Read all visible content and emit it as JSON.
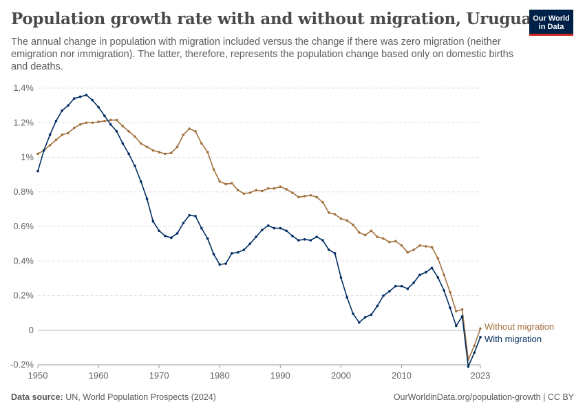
{
  "header": {
    "title": "Population growth rate with and without migration, Uruguay",
    "subtitle": "The annual change in population with migration included versus the change if there was zero migration (neither emigration nor immigration). The latter, therefore, represents the population change based only on domestic births and deaths.",
    "logo_text": "Our World in Data"
  },
  "footer": {
    "source_label": "Data source:",
    "source_text": "UN, World Population Prospects (2024)",
    "link_text": "OurWorldinData.org/population-growth | CC BY"
  },
  "colors": {
    "with_migration": "#002d62",
    "without_migration": "#a2703c",
    "gridline": "#dddddd",
    "zero_line": "#aaaaaa",
    "tick_text": "#666666",
    "logo_bg": "#002147",
    "logo_accent": "#ce261e"
  },
  "chart_data": {
    "type": "line",
    "title": "Population growth rate with and without migration, Uruguay",
    "xlabel": "",
    "ylabel": "",
    "xlim": [
      1950,
      2023
    ],
    "ylim": [
      -0.2,
      1.4
    ],
    "grid": "horizontal dashed",
    "y_ticks": [
      -0.2,
      0,
      0.2,
      0.4,
      0.6,
      0.8,
      1,
      1.2,
      1.4
    ],
    "y_tick_labels": [
      "-0.2%",
      "0",
      "0.2%",
      "0.4%",
      "0.6%",
      "0.8%",
      "1%",
      "1.2%",
      "1.4%"
    ],
    "x_ticks": [
      1950,
      1960,
      1970,
      1980,
      1990,
      2000,
      2010,
      2023
    ],
    "x_tick_labels": [
      "1950",
      "1960",
      "1970",
      "1980",
      "1990",
      "2000",
      "2010",
      "2023"
    ],
    "legend_placement": "right-end labels",
    "x": [
      1950,
      1951,
      1952,
      1953,
      1954,
      1955,
      1956,
      1957,
      1958,
      1959,
      1960,
      1961,
      1962,
      1963,
      1964,
      1965,
      1966,
      1967,
      1968,
      1969,
      1970,
      1971,
      1972,
      1973,
      1974,
      1975,
      1976,
      1977,
      1978,
      1979,
      1980,
      1981,
      1982,
      1983,
      1984,
      1985,
      1986,
      1987,
      1988,
      1989,
      1990,
      1991,
      1992,
      1993,
      1994,
      1995,
      1996,
      1997,
      1998,
      1999,
      2000,
      2001,
      2002,
      2003,
      2004,
      2005,
      2006,
      2007,
      2008,
      2009,
      2010,
      2011,
      2012,
      2013,
      2014,
      2015,
      2016,
      2017,
      2018,
      2019,
      2020,
      2021,
      2022,
      2023
    ],
    "series": [
      {
        "name": "Without migration",
        "values": [
          1.02,
          1.04,
          1.07,
          1.1,
          1.13,
          1.14,
          1.17,
          1.19,
          1.2,
          1.2,
          1.205,
          1.21,
          1.215,
          1.215,
          1.18,
          1.15,
          1.12,
          1.08,
          1.06,
          1.04,
          1.03,
          1.02,
          1.025,
          1.06,
          1.13,
          1.165,
          1.15,
          1.08,
          1.03,
          0.93,
          0.86,
          0.845,
          0.85,
          0.81,
          0.79,
          0.795,
          0.81,
          0.805,
          0.82,
          0.82,
          0.83,
          0.815,
          0.795,
          0.77,
          0.775,
          0.78,
          0.77,
          0.74,
          0.68,
          0.67,
          0.645,
          0.635,
          0.61,
          0.565,
          0.55,
          0.575,
          0.54,
          0.53,
          0.51,
          0.515,
          0.49,
          0.45,
          0.465,
          0.49,
          0.485,
          0.48,
          0.415,
          0.32,
          0.22,
          0.11,
          0.12,
          -0.17,
          -0.09,
          0.01
        ]
      },
      {
        "name": "With migration",
        "values": [
          0.92,
          1.04,
          1.13,
          1.21,
          1.27,
          1.3,
          1.34,
          1.35,
          1.36,
          1.33,
          1.29,
          1.24,
          1.19,
          1.15,
          1.08,
          1.02,
          0.95,
          0.86,
          0.76,
          0.63,
          0.575,
          0.545,
          0.535,
          0.56,
          0.62,
          0.665,
          0.66,
          0.59,
          0.53,
          0.44,
          0.38,
          0.385,
          0.445,
          0.45,
          0.465,
          0.5,
          0.54,
          0.58,
          0.605,
          0.59,
          0.59,
          0.575,
          0.545,
          0.52,
          0.525,
          0.52,
          0.54,
          0.52,
          0.465,
          0.445,
          0.305,
          0.19,
          0.095,
          0.045,
          0.075,
          0.09,
          0.14,
          0.2,
          0.225,
          0.255,
          0.255,
          0.24,
          0.275,
          0.32,
          0.335,
          0.36,
          0.305,
          0.23,
          0.13,
          0.025,
          0.08,
          -0.21,
          -0.13,
          -0.04
        ]
      }
    ]
  }
}
